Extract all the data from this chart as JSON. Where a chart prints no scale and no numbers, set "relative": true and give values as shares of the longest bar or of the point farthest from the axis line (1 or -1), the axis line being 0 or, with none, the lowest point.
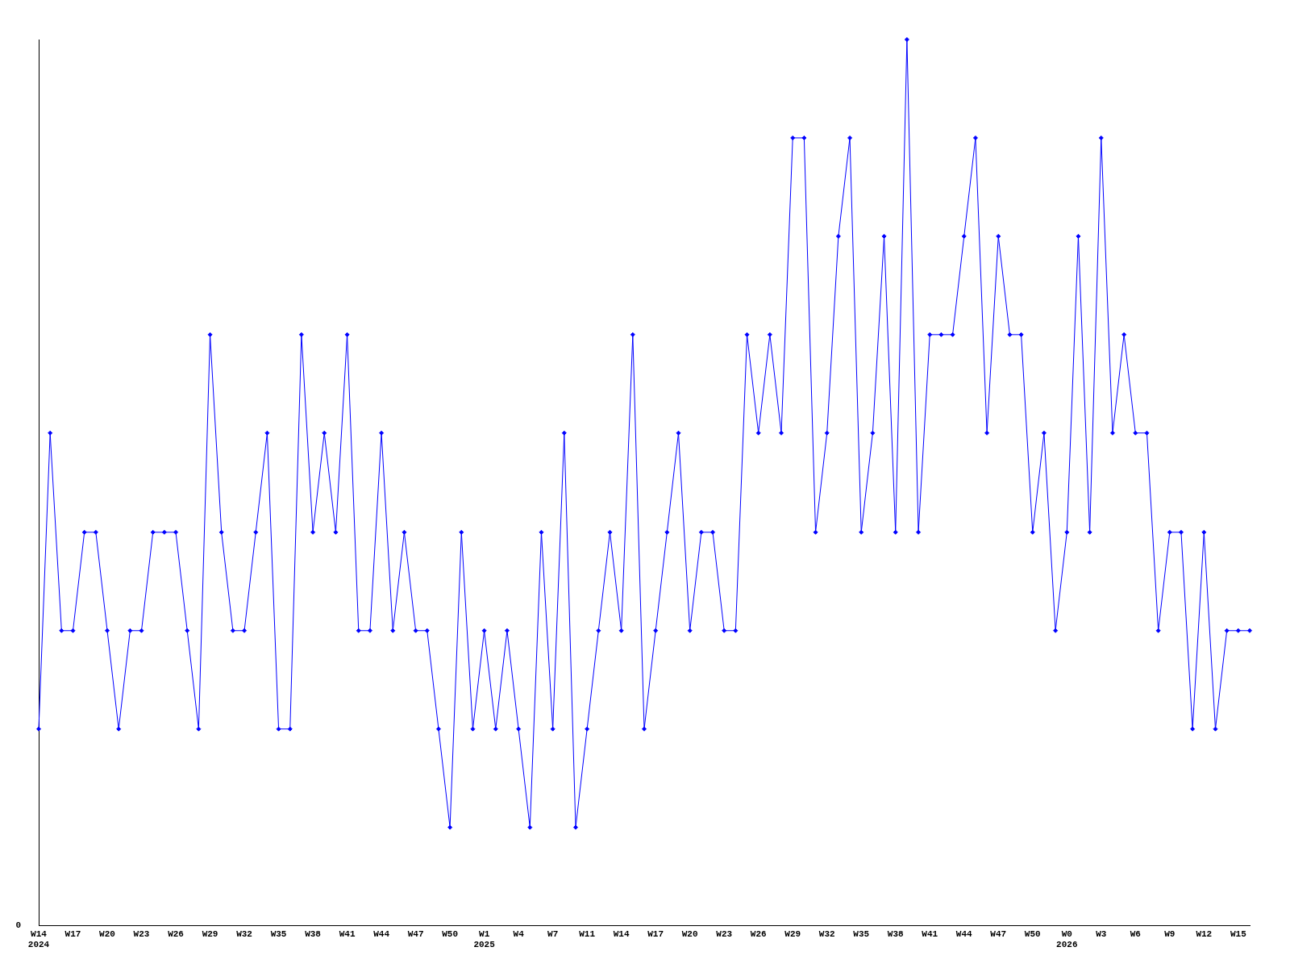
{
  "chart_data": {
    "type": "line",
    "relative": true,
    "color": "#0000ff",
    "marker": "diamond",
    "line_style": "solid",
    "grid": false,
    "legend": false,
    "annotations": [
      "0"
    ],
    "categories": [
      "W14\n2024",
      null,
      null,
      "W17",
      null,
      null,
      "W20",
      null,
      null,
      "W23",
      null,
      null,
      "W26",
      null,
      null,
      "W29",
      null,
      null,
      "W32",
      null,
      null,
      "W35",
      null,
      null,
      "W38",
      null,
      null,
      "W41",
      null,
      null,
      "W44",
      null,
      null,
      "W47",
      null,
      null,
      "W50",
      null,
      null,
      "W1\n2025",
      null,
      null,
      "W4",
      null,
      null,
      "W7",
      null,
      null,
      "W11",
      null,
      null,
      "W14",
      null,
      null,
      "W17",
      null,
      null,
      "W20",
      null,
      null,
      "W23",
      null,
      null,
      "W26",
      null,
      null,
      "W29",
      null,
      null,
      "W32",
      null,
      null,
      "W35",
      null,
      null,
      "W38",
      null,
      null,
      "W41",
      null,
      null,
      "W44",
      null,
      null,
      "W47",
      null,
      null,
      "W50",
      null,
      null,
      "W0\n2026",
      null,
      null,
      "W3",
      null,
      null,
      "W6",
      null,
      null,
      "W9",
      null,
      null,
      "W12",
      null,
      null,
      "W15",
      null
    ],
    "values": [
      0.222,
      0.556,
      0.333,
      0.333,
      0.444,
      0.444,
      0.333,
      0.222,
      0.333,
      0.333,
      0.444,
      0.444,
      0.444,
      0.333,
      0.222,
      0.667,
      0.444,
      0.333,
      0.333,
      0.444,
      0.556,
      0.222,
      0.222,
      0.667,
      0.444,
      0.556,
      0.444,
      0.667,
      0.333,
      0.333,
      0.556,
      0.333,
      0.444,
      0.333,
      0.333,
      0.222,
      0.111,
      0.444,
      0.222,
      0.333,
      0.222,
      0.333,
      0.222,
      0.111,
      0.444,
      0.222,
      0.556,
      0.111,
      0.222,
      0.333,
      0.444,
      0.333,
      0.667,
      0.222,
      0.333,
      0.444,
      0.556,
      0.333,
      0.444,
      0.444,
      0.333,
      0.333,
      0.667,
      0.556,
      0.667,
      0.556,
      0.889,
      0.889,
      0.444,
      0.556,
      0.778,
      0.889,
      0.444,
      0.556,
      0.778,
      0.444,
      1,
      0.444,
      0.667,
      0.667,
      0.667,
      0.778,
      0.889,
      0.556,
      0.778,
      0.667,
      0.667,
      0.444,
      0.556,
      0.333,
      0.444,
      0.778,
      0.444,
      0.889,
      0.556,
      0.667,
      0.556,
      0.556,
      0.333,
      0.444,
      0.444,
      0.222,
      0.444,
      0.222,
      0.333,
      0.333,
      0.333
    ]
  }
}
